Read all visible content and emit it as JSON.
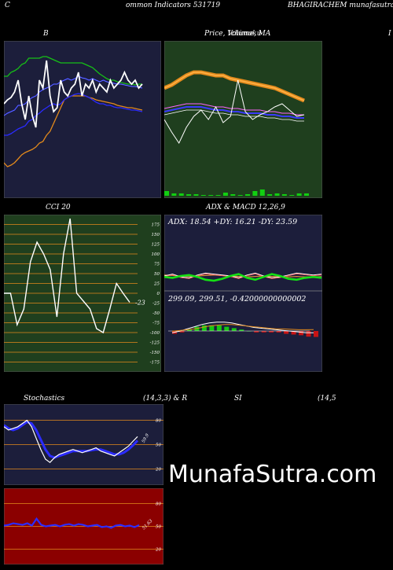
{
  "header": {
    "left": "C",
    "middle": "ommon  Indicators 531719",
    "right": "BHAGIRACHEM munafasutra.in"
  },
  "panels": {
    "bb": {
      "title": "B"
    },
    "price": {
      "title": "Price,  Volume,  MA",
      "overlay": "Ichimoku",
      "right_edge": "I"
    },
    "cci": {
      "title": "CCI 20",
      "current": "-23",
      "ticks": [
        "175",
        "150",
        "125",
        "100",
        "75",
        "50",
        "25",
        "0",
        "-25",
        "-50",
        "-75",
        "-100",
        "-125",
        "-150",
        "-175"
      ]
    },
    "adx": {
      "title": "ADX  & MACD 12,26,9",
      "adx_text": "ADX: 18.54   +DY: 16.21 -DY: 23.59",
      "macd_text": "299.09,  299.51,  -0.42000000000002"
    },
    "stoch": {
      "title_left": "Stochastics",
      "title_mid": "(14,3,3) & R",
      "title_rsi": "SI",
      "title_right": "(14,5",
      "ticks": [
        "80",
        "50",
        "20"
      ],
      "current": "59.9"
    },
    "rsi": {
      "ticks": [
        "80",
        "50",
        "20"
      ],
      "current": "51.63"
    }
  },
  "watermark": "MunafaSutra.com",
  "colors": {
    "navy": "#1c1e3b",
    "green_bg": "#1f3f1e",
    "red_bg": "#8b0000",
    "orange": "#e38a1c",
    "price_green": "#11d011"
  },
  "chart_data": [
    {
      "type": "line",
      "title": "B",
      "series": [
        {
          "values": [
            120,
            125,
            128,
            135,
            150,
            120,
            100,
            130,
            105,
            90,
            150,
            140,
            175,
            130,
            110,
            115,
            150,
            135,
            130,
            140,
            145,
            160,
            130,
            145,
            140,
            150,
            135,
            145,
            140,
            135,
            150,
            140,
            145,
            150,
            160,
            150,
            145,
            150,
            140,
            145
          ]
        },
        {
          "values": [
            105,
            108,
            110,
            112,
            118,
            118,
            120,
            125,
            128,
            130,
            135,
            138,
            140,
            142,
            145,
            145,
            148,
            150,
            152,
            150,
            152,
            155,
            153,
            152,
            150,
            152,
            150,
            148,
            150,
            148,
            147,
            146,
            145,
            145,
            144,
            143,
            142,
            142,
            141,
            140
          ]
        },
        {
          "values": [
            80,
            80,
            82,
            85,
            88,
            90,
            92,
            98,
            100,
            105,
            108,
            112,
            115,
            118,
            120,
            118,
            120,
            125,
            128,
            130,
            132,
            133,
            132,
            130,
            128,
            125,
            122,
            120,
            120,
            118,
            118,
            116,
            115,
            115,
            114,
            113,
            112,
            112,
            111,
            110
          ]
        },
        {
          "values": [
            45,
            40,
            42,
            45,
            50,
            55,
            58,
            60,
            62,
            65,
            70,
            72,
            80,
            85,
            95,
            105,
            115,
            125,
            128,
            130,
            130,
            130,
            130,
            130,
            128,
            127,
            125,
            124,
            123,
            122,
            121,
            120,
            118,
            117,
            116,
            115,
            115,
            114,
            113,
            112
          ]
        },
        {
          "values": [
            155,
            155,
            160,
            162,
            165,
            170,
            172,
            178,
            178,
            178,
            178,
            180,
            180,
            178,
            176,
            174,
            172,
            172,
            172,
            172,
            172,
            172,
            172,
            170,
            168,
            166,
            162,
            158,
            155,
            152,
            150,
            150,
            148,
            147,
            146,
            145,
            145,
            144,
            145,
            145
          ]
        }
      ]
    },
    {
      "type": "line",
      "title": "Price,  Volume,  MA",
      "series": [
        {
          "values": [
            310,
            312,
            315,
            318,
            320,
            320,
            319,
            318,
            318,
            316,
            315,
            314,
            313,
            312,
            311,
            310,
            308,
            306,
            304,
            302
          ]
        },
        {
          "values": [
            295,
            296,
            297,
            298,
            298,
            298,
            297,
            296,
            296,
            295,
            295,
            294,
            294,
            294,
            293,
            293,
            292,
            292,
            291,
            291
          ]
        },
        {
          "values": [
            290,
            282,
            275,
            285,
            292,
            296,
            290,
            298,
            288,
            292,
            315,
            295,
            290,
            293,
            295,
            298,
            300,
            296,
            292,
            293
          ]
        }
      ],
      "volume": [
        6,
        3,
        3,
        2,
        2,
        1,
        1,
        1,
        4,
        2,
        1,
        2,
        6,
        8,
        2,
        3,
        2,
        1,
        3,
        3
      ]
    },
    {
      "type": "line",
      "title": "CCI 20",
      "y_range": [
        -175,
        175
      ],
      "series": [
        {
          "values": [
            0,
            0,
            -80,
            -40,
            80,
            130,
            100,
            60,
            -60,
            100,
            190,
            0,
            -20,
            -40,
            -90,
            -100,
            -40,
            25,
            0,
            -23
          ]
        }
      ]
    },
    {
      "type": "line",
      "title": "ADX  & MACD 12,26,9",
      "series": [
        {
          "name": "ADX",
          "values": [
            22,
            21,
            20,
            19,
            20,
            21,
            22,
            21,
            20,
            19,
            18,
            19,
            20,
            19,
            18,
            18,
            19,
            18,
            18,
            18.54
          ]
        },
        {
          "name": "+DY",
          "values": [
            18,
            16,
            20,
            22,
            18,
            12,
            10,
            14,
            20,
            24,
            16,
            12,
            18,
            24,
            20,
            14,
            12,
            16,
            18,
            16.21
          ]
        },
        {
          "name": "-DY",
          "values": [
            20,
            24,
            18,
            16,
            22,
            26,
            24,
            22,
            20,
            16,
            22,
            26,
            20,
            16,
            18,
            22,
            26,
            24,
            22,
            23.59
          ]
        }
      ],
      "macd": [
        299.1,
        299.3,
        299.6,
        299.9,
        300.2,
        300.4,
        300.5,
        300.5,
        300.4,
        300.2,
        300.0,
        299.8,
        299.7,
        299.6,
        299.5,
        299.4,
        299.3,
        299.2,
        299.1,
        299.09
      ],
      "signal": [
        299.3,
        299.4,
        299.5,
        299.6,
        299.8,
        300.0,
        300.1,
        300.2,
        300.2,
        300.1,
        300.0,
        299.9,
        299.8,
        299.7,
        299.6,
        299.6,
        299.55,
        299.5,
        299.5,
        299.51
      ]
    },
    {
      "type": "line",
      "title": "Stochastics",
      "y_range": [
        0,
        100
      ],
      "series": [
        {
          "values": [
            72,
            68,
            70,
            72,
            76,
            80,
            72,
            58,
            44,
            32,
            28,
            34,
            38,
            40,
            42,
            44,
            42,
            40,
            42,
            44,
            46,
            42,
            40,
            38,
            36,
            40,
            44,
            48,
            54,
            59.9
          ]
        },
        {
          "values": [
            74,
            70,
            68,
            70,
            74,
            78,
            76,
            68,
            56,
            44,
            36,
            34,
            36,
            38,
            40,
            42,
            42,
            42,
            42,
            43,
            44,
            44,
            42,
            40,
            38,
            38,
            40,
            44,
            49,
            55
          ]
        }
      ]
    },
    {
      "type": "line",
      "title": "RSI",
      "y_range": [
        0,
        100
      ],
      "series": [
        {
          "values": [
            51,
            52,
            54,
            53,
            52,
            54,
            51,
            60,
            52,
            50,
            51,
            52,
            50,
            52,
            53,
            51,
            53,
            52,
            50,
            51,
            52,
            49,
            50,
            48,
            51,
            52,
            50,
            51,
            49,
            51.63
          ]
        }
      ]
    }
  ]
}
